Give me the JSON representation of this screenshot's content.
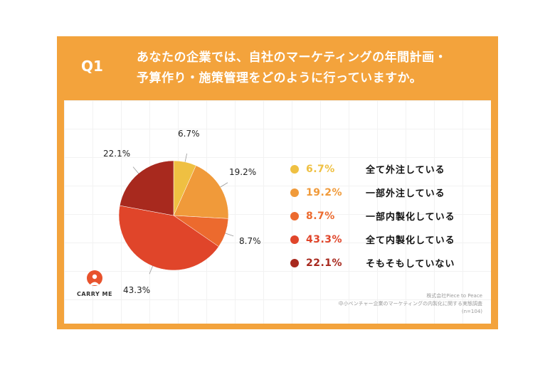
{
  "header": {
    "qnum": "Q1",
    "question_line1": "あなたの企業では、自社のマーケティングの年間計画・",
    "question_line2": "予算作り・施策管理をどのように行っていますか。"
  },
  "chart_data": {
    "type": "pie",
    "slices": [
      {
        "label": "全て外注している",
        "value": 6.7,
        "display": "6.7%",
        "color": "#efc042"
      },
      {
        "label": "一部外注している",
        "value": 19.2,
        "display": "19.2%",
        "color": "#f09a3a"
      },
      {
        "label": "一部内製化している",
        "value": 8.7,
        "display": "8.7%",
        "color": "#ec6a2e"
      },
      {
        "label": "全て内製化している",
        "value": 43.3,
        "display": "43.3%",
        "color": "#e0452a"
      },
      {
        "label": "そもそもしていない",
        "value": 22.1,
        "display": "22.1%",
        "color": "#a8291e"
      }
    ]
  },
  "logo": {
    "name": "CARRY ME",
    "color": "#e8522c"
  },
  "source": {
    "line1": "株式会社Piece to Peace",
    "line2": "中小ベンチャー企業のマーケティングの内製化に関する実態調査",
    "line3": "(n=104)"
  }
}
